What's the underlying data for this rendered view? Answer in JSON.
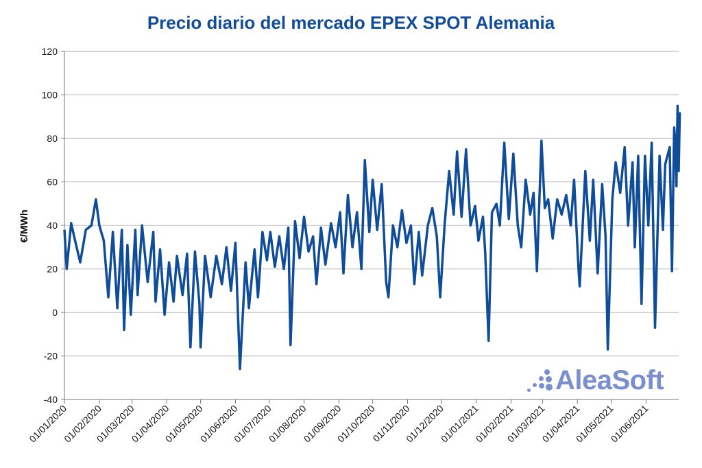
{
  "chart_data": {
    "type": "line",
    "title": "Precio diario del mercado EPEX SPOT Alemania",
    "ylabel": "€/MWh",
    "xlabel": "",
    "ylim": [
      -40,
      120
    ],
    "yticks": [
      "120",
      "100",
      "80",
      "60",
      "40",
      "20",
      "0",
      "-20",
      "-40"
    ],
    "x_tick_labels": [
      "01/01/2020",
      "01/02/2020",
      "01/03/2020",
      "01/04/2020",
      "01/05/2020",
      "01/06/2020",
      "01/07/2020",
      "01/08/2020",
      "01/09/2020",
      "01/10/2020",
      "01/11/2020",
      "01/12/2020",
      "01/01/2021",
      "01/02/2021",
      "01/03/2021",
      "01/04/2021",
      "01/05/2021",
      "01/06/2021"
    ],
    "x_range": [
      "01/01/2020",
      "30/06/2021"
    ],
    "grid": "horizontal",
    "line_color": "#0f4c9a",
    "series": [
      {
        "key_points": [
          [
            "01/01/2020",
            38
          ],
          [
            "03/01/2020",
            20
          ],
          [
            "07/01/2020",
            41
          ],
          [
            "10/01/2020",
            34
          ],
          [
            "15/01/2020",
            23
          ],
          [
            "20/01/2020",
            38
          ],
          [
            "25/01/2020",
            40
          ],
          [
            "29/01/2020",
            52
          ],
          [
            "01/02/2020",
            40
          ],
          [
            "05/02/2020",
            33
          ],
          [
            "09/02/2020",
            7
          ],
          [
            "13/02/2020",
            37
          ],
          [
            "17/02/2020",
            2
          ],
          [
            "21/02/2020",
            38
          ],
          [
            "23/02/2020",
            -8
          ],
          [
            "26/02/2020",
            31
          ],
          [
            "29/02/2020",
            -1
          ],
          [
            "04/03/2020",
            38
          ],
          [
            "06/03/2020",
            8
          ],
          [
            "10/03/2020",
            40
          ],
          [
            "15/03/2020",
            14
          ],
          [
            "20/03/2020",
            37
          ],
          [
            "22/03/2020",
            5
          ],
          [
            "26/03/2020",
            29
          ],
          [
            "30/03/2020",
            -1
          ],
          [
            "03/04/2020",
            23
          ],
          [
            "07/04/2020",
            5
          ],
          [
            "10/04/2020",
            26
          ],
          [
            "15/04/2020",
            8
          ],
          [
            "19/04/2020",
            27
          ],
          [
            "22/04/2020",
            -16
          ],
          [
            "26/04/2020",
            28
          ],
          [
            "30/04/2020",
            4
          ],
          [
            "01/05/2020",
            -16
          ],
          [
            "05/05/2020",
            26
          ],
          [
            "10/05/2020",
            7
          ],
          [
            "15/05/2020",
            26
          ],
          [
            "20/05/2020",
            13
          ],
          [
            "24/05/2020",
            30
          ],
          [
            "28/05/2020",
            10
          ],
          [
            "01/06/2020",
            32
          ],
          [
            "05/06/2020",
            -26
          ],
          [
            "10/06/2020",
            23
          ],
          [
            "13/06/2020",
            2
          ],
          [
            "18/06/2020",
            29
          ],
          [
            "21/06/2020",
            7
          ],
          [
            "25/06/2020",
            37
          ],
          [
            "29/06/2020",
            24
          ],
          [
            "02/07/2020",
            37
          ],
          [
            "06/07/2020",
            21
          ],
          [
            "10/07/2020",
            35
          ],
          [
            "14/07/2020",
            20
          ],
          [
            "18/07/2020",
            39
          ],
          [
            "20/07/2020",
            -15
          ],
          [
            "24/07/2020",
            42
          ],
          [
            "28/07/2020",
            25
          ],
          [
            "01/08/2020",
            44
          ],
          [
            "05/08/2020",
            28
          ],
          [
            "09/08/2020",
            35
          ],
          [
            "12/08/2020",
            13
          ],
          [
            "16/08/2020",
            39
          ],
          [
            "20/08/2020",
            22
          ],
          [
            "25/08/2020",
            41
          ],
          [
            "29/08/2020",
            30
          ],
          [
            "02/09/2020",
            46
          ],
          [
            "05/09/2020",
            18
          ],
          [
            "09/09/2020",
            54
          ],
          [
            "13/09/2020",
            30
          ],
          [
            "17/09/2020",
            46
          ],
          [
            "21/09/2020",
            20
          ],
          [
            "24/09/2020",
            70
          ],
          [
            "28/09/2020",
            37
          ],
          [
            "01/10/2020",
            61
          ],
          [
            "05/10/2020",
            38
          ],
          [
            "09/10/2020",
            59
          ],
          [
            "13/10/2020",
            14
          ],
          [
            "15/10/2020",
            7
          ],
          [
            "19/10/2020",
            40
          ],
          [
            "23/10/2020",
            30
          ],
          [
            "27/10/2020",
            47
          ],
          [
            "31/10/2020",
            32
          ],
          [
            "04/11/2020",
            40
          ],
          [
            "07/11/2020",
            13
          ],
          [
            "11/11/2020",
            37
          ],
          [
            "14/11/2020",
            17
          ],
          [
            "19/11/2020",
            40
          ],
          [
            "23/11/2020",
            48
          ],
          [
            "27/11/2020",
            35
          ],
          [
            "30/11/2020",
            7
          ],
          [
            "04/12/2020",
            41
          ],
          [
            "08/12/2020",
            65
          ],
          [
            "12/12/2020",
            45
          ],
          [
            "15/12/2020",
            74
          ],
          [
            "19/12/2020",
            44
          ],
          [
            "23/12/2020",
            75
          ],
          [
            "27/12/2020",
            40
          ],
          [
            "31/12/2020",
            49
          ],
          [
            "03/01/2021",
            33
          ],
          [
            "07/01/2021",
            44
          ],
          [
            "09/01/2021",
            28
          ],
          [
            "12/01/2021",
            -13
          ],
          [
            "15/01/2021",
            46
          ],
          [
            "19/01/2021",
            50
          ],
          [
            "22/01/2021",
            40
          ],
          [
            "26/01/2021",
            78
          ],
          [
            "30/01/2021",
            43
          ],
          [
            "03/02/2021",
            73
          ],
          [
            "07/02/2021",
            40
          ],
          [
            "10/02/2021",
            30
          ],
          [
            "14/02/2021",
            61
          ],
          [
            "18/02/2021",
            45
          ],
          [
            "21/02/2021",
            55
          ],
          [
            "24/02/2021",
            19
          ],
          [
            "28/02/2021",
            79
          ],
          [
            "03/03/2021",
            48
          ],
          [
            "06/03/2021",
            52
          ],
          [
            "10/03/2021",
            34
          ],
          [
            "14/03/2021",
            52
          ],
          [
            "18/03/2021",
            45
          ],
          [
            "22/03/2021",
            54
          ],
          [
            "26/03/2021",
            40
          ],
          [
            "29/03/2021",
            61
          ],
          [
            "02/04/2021",
            20
          ],
          [
            "03/04/2021",
            12
          ],
          [
            "08/04/2021",
            65
          ],
          [
            "12/04/2021",
            33
          ],
          [
            "15/04/2021",
            61
          ],
          [
            "19/04/2021",
            18
          ],
          [
            "23/04/2021",
            59
          ],
          [
            "26/04/2021",
            35
          ],
          [
            "28/04/2021",
            -17
          ],
          [
            "02/05/2021",
            52
          ],
          [
            "05/05/2021",
            69
          ],
          [
            "09/05/2021",
            55
          ],
          [
            "13/05/2021",
            76
          ],
          [
            "16/05/2021",
            40
          ],
          [
            "20/05/2021",
            69
          ],
          [
            "22/05/2021",
            30
          ],
          [
            "25/05/2021",
            72
          ],
          [
            "28/05/2021",
            4
          ],
          [
            "31/05/2021",
            72
          ],
          [
            "03/06/2021",
            40
          ],
          [
            "06/06/2021",
            78
          ],
          [
            "09/06/2021",
            -7
          ],
          [
            "13/06/2021",
            72
          ],
          [
            "16/06/2021",
            38
          ],
          [
            "18/06/2021",
            68
          ],
          [
            "22/06/2021",
            76
          ],
          [
            "24/06/2021",
            19
          ],
          [
            "26/06/2021",
            85
          ],
          [
            "27/06/2021",
            78
          ],
          [
            "28/06/2021",
            58
          ],
          [
            "29/06/2021",
            95
          ],
          [
            "30/06/2021",
            65
          ],
          [
            "01/07/2021",
            92
          ]
        ]
      }
    ]
  },
  "logo": {
    "text": "AleaSoft"
  }
}
